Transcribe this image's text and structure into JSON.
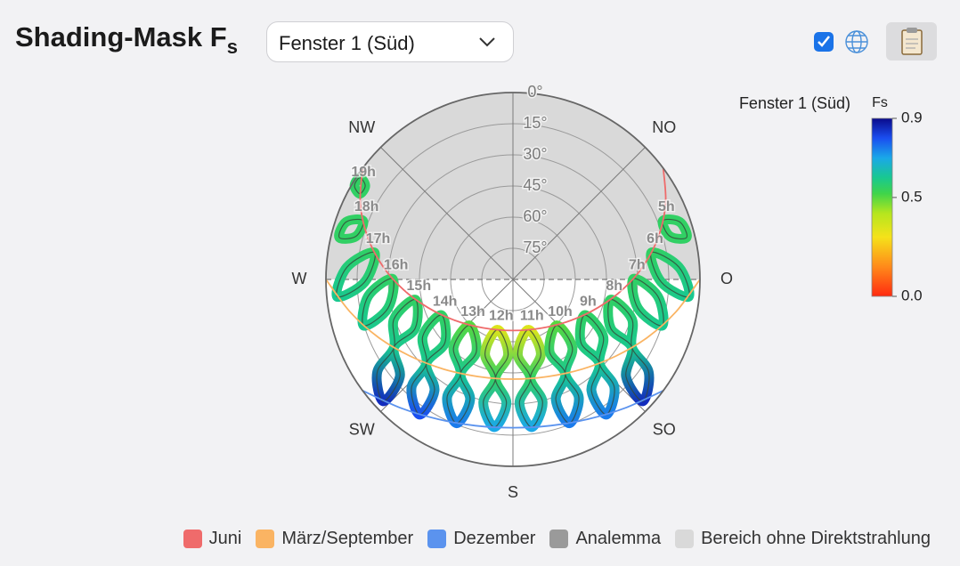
{
  "header": {
    "title": "Shading-Mask F",
    "title_sub": "s",
    "window_select": "Fenster 1 (Süd)"
  },
  "chart_data": {
    "type": "sunpath",
    "colorbar_title": "Fenster 1 (Süd)",
    "colorbar_label": "Fs",
    "clim": [
      0,
      0.9
    ],
    "cticks": [
      {
        "value": 0,
        "label": "0.0"
      },
      0.5,
      0.9
    ],
    "colorscale": [
      [
        0,
        "#ff2a10"
      ],
      [
        0.15,
        "#ff8a1a"
      ],
      [
        0.3,
        "#f5e21a"
      ],
      [
        0.42,
        "#b5e61e"
      ],
      [
        0.52,
        "#3fd44a"
      ],
      [
        0.6,
        "#19c890"
      ],
      [
        0.7,
        "#1aa8e8"
      ],
      [
        0.8,
        "#1a4ef0"
      ],
      [
        0.9,
        "#0a0a8a"
      ]
    ],
    "rlim": [
      0,
      90
    ],
    "rticks": [
      {
        "value": 0,
        "label": "0°"
      },
      {
        "value": 15,
        "label": "15°"
      },
      {
        "value": 30,
        "label": "30°"
      },
      {
        "value": 45,
        "label": "45°"
      },
      {
        "value": 60,
        "label": "60°"
      },
      {
        "value": 75,
        "label": "75°"
      }
    ],
    "thetaticks": [
      {
        "value": 135,
        "label": "NW"
      },
      {
        "value": -135,
        "label": "NO"
      },
      {
        "value": 90,
        "label": "W"
      },
      {
        "value": -90,
        "label": "O"
      },
      {
        "value": 45,
        "label": "SW"
      },
      {
        "value": -45,
        "label": "SO"
      },
      {
        "value": 0,
        "label": "S"
      }
    ],
    "series": [
      {
        "name": "Juni",
        "color": "#ef6b6b",
        "azimuth": [
          -126.5,
          -116.5,
          -106.2,
          -95.8,
          -84.6,
          -71.6,
          -54.8,
          -31.2,
          0,
          31.2,
          54.8,
          71.6,
          84.6,
          95.8,
          106.2,
          116.5,
          126.5
        ],
        "elevation": [
          0,
          7.9,
          17.2,
          27.0,
          37.1,
          46.9,
          55.8,
          62.7,
          65.4,
          62.7,
          55.8,
          46.9,
          37.1,
          27.0,
          17.2,
          7.9,
          0
        ]
      },
      {
        "name": "März/September",
        "color": "#fab463",
        "azimuth": [
          -90,
          -78.8,
          -66.7,
          -53.4,
          -37.8,
          -19.8,
          0,
          19.8,
          37.8,
          53.4,
          66.7,
          78.8,
          90
        ],
        "elevation": [
          0,
          10,
          19.5,
          28.2,
          35.4,
          40.3,
          42,
          40.3,
          35.4,
          28.2,
          19.5,
          10,
          0
        ]
      },
      {
        "name": "Dezember",
        "color": "#5b93ee",
        "azimuth": [
          -53.5,
          -40.9,
          -28.2,
          -14.4,
          0,
          14.4,
          28.2,
          40.9,
          53.5
        ],
        "elevation": [
          0,
          7.96,
          13.65,
          17.3,
          18.6,
          17.3,
          13.65,
          7.96,
          0
        ]
      }
    ],
    "analemma": {
      "name": "Analemma",
      "color": "#9a9a9a",
      "line_color": "#34463a",
      "loops": [
        {
          "label": "19h",
          "azimuth": [
            121.5
          ],
          "elevation": [
            3.6
          ],
          "fs": [
            0.55
          ]
        },
        {
          "label": "18h",
          "azimuth": [
            111.4,
            103.6
          ],
          "elevation": [
            12.5,
            4.0
          ],
          "fs": [
            0.55,
            0.55
          ]
        },
        {
          "label": "17h",
          "azimuth": [
            101.0,
            84.4
          ],
          "elevation": [
            22.1,
            5.0
          ],
          "fs": [
            0.55,
            0.6
          ]
        },
        {
          "label": "16h",
          "azimuth": [
            90.3,
            72.8
          ],
          "elevation": [
            32.0,
            14.8
          ],
          "fs": [
            0.55,
            0.6
          ]
        },
        {
          "label": "15h",
          "azimuth": [
            78.3,
            60.2,
            46.8
          ],
          "elevation": [
            42.0,
            24.0,
            4.3
          ],
          "fs": [
            0.55,
            0.6,
            0.85
          ]
        },
        {
          "label": "14h",
          "azimuth": [
            63.5,
            45.8,
            34.6
          ],
          "elevation": [
            51.5,
            31.9,
            10.9
          ],
          "fs": [
            0.55,
            0.6,
            0.8
          ]
        },
        {
          "label": "13h",
          "azimuth": [
            43.5,
            29,
            21.4
          ],
          "elevation": [
            59.5,
            38.0,
            15.6
          ],
          "fs": [
            0.5,
            0.6,
            0.75
          ]
        },
        {
          "label": "12h",
          "azimuth": [
            17,
            10,
            7.2
          ],
          "elevation": [
            64.7,
            41.6,
            18.3
          ],
          "fs": [
            0.35,
            0.55,
            0.7
          ]
        },
        {
          "label": "11h",
          "azimuth": [
            -17,
            -10,
            -7.2
          ],
          "elevation": [
            64.7,
            41.6,
            18.3
          ],
          "fs": [
            0.35,
            0.55,
            0.7
          ]
        },
        {
          "label": "10h",
          "azimuth": [
            -43.5,
            -29,
            -21.4
          ],
          "elevation": [
            59.5,
            38.0,
            15.6
          ],
          "fs": [
            0.5,
            0.6,
            0.75
          ]
        },
        {
          "label": "9h",
          "azimuth": [
            -63.5,
            -45.8,
            -34.6
          ],
          "elevation": [
            51.5,
            31.9,
            10.9
          ],
          "fs": [
            0.55,
            0.6,
            0.75
          ]
        },
        {
          "label": "8h",
          "azimuth": [
            -78.3,
            -60.2,
            -46.8
          ],
          "elevation": [
            42.0,
            24.0,
            4.3
          ],
          "fs": [
            0.55,
            0.6,
            0.85
          ]
        },
        {
          "label": "7h",
          "azimuth": [
            -90.3,
            -72.8
          ],
          "elevation": [
            32.0,
            14.8
          ],
          "fs": [
            0.55,
            0.6
          ]
        },
        {
          "label": "6h",
          "azimuth": [
            -101.0,
            -84.4
          ],
          "elevation": [
            22.1,
            5.0
          ],
          "fs": [
            0.55,
            0.6
          ]
        },
        {
          "label": "5h",
          "azimuth": [
            -111.4,
            -103.6
          ],
          "elevation": [
            12.5,
            4.0
          ],
          "fs": [
            0.55,
            0.55
          ]
        }
      ]
    },
    "no_direct_region": {
      "name": "Bereich ohne Direktstrahlung",
      "color": "#d9d9d9"
    }
  }
}
